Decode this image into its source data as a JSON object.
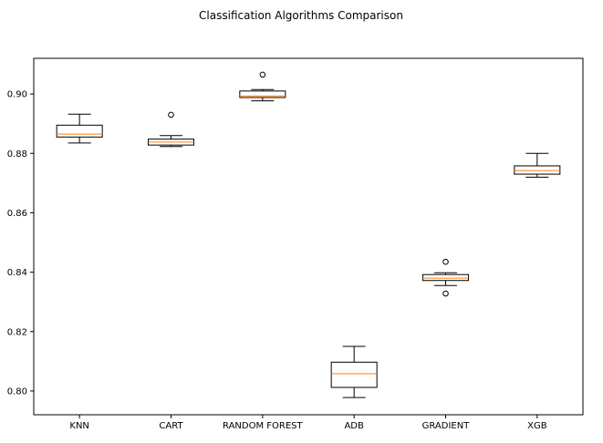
{
  "chart_data": {
    "type": "box",
    "title": "Classification Algorithms Comparison",
    "xlabel": "",
    "ylabel": "",
    "ylim": [
      0.792,
      0.912
    ],
    "yticks": [
      "0.80",
      "0.82",
      "0.84",
      "0.86",
      "0.88",
      "0.90"
    ],
    "grid": false,
    "colors": {
      "box": "#000000",
      "median": "#ff7f0e",
      "flier": "#000000"
    },
    "boxes": [
      {
        "name": "KNN",
        "whisker_low": 0.8835,
        "q1": 0.8855,
        "median": 0.8865,
        "q3": 0.8895,
        "whisker_high": 0.8932,
        "fliers": []
      },
      {
        "name": "CART",
        "whisker_low": 0.8823,
        "q1": 0.8828,
        "median": 0.8838,
        "q3": 0.8848,
        "whisker_high": 0.886,
        "fliers": [
          0.893
        ]
      },
      {
        "name": "RANDOM FOREST",
        "whisker_low": 0.8977,
        "q1": 0.8988,
        "median": 0.8993,
        "q3": 0.901,
        "whisker_high": 0.9015,
        "fliers": [
          0.9065
        ]
      },
      {
        "name": "ADB",
        "whisker_low": 0.7978,
        "q1": 0.8012,
        "median": 0.8058,
        "q3": 0.8097,
        "whisker_high": 0.815,
        "fliers": []
      },
      {
        "name": "GRADIENT",
        "whisker_low": 0.8355,
        "q1": 0.8372,
        "median": 0.838,
        "q3": 0.8392,
        "whisker_high": 0.8398,
        "fliers": [
          0.8435,
          0.8328
        ]
      },
      {
        "name": "XGB",
        "whisker_low": 0.872,
        "q1": 0.873,
        "median": 0.8742,
        "q3": 0.8758,
        "whisker_high": 0.88,
        "fliers": []
      }
    ]
  }
}
